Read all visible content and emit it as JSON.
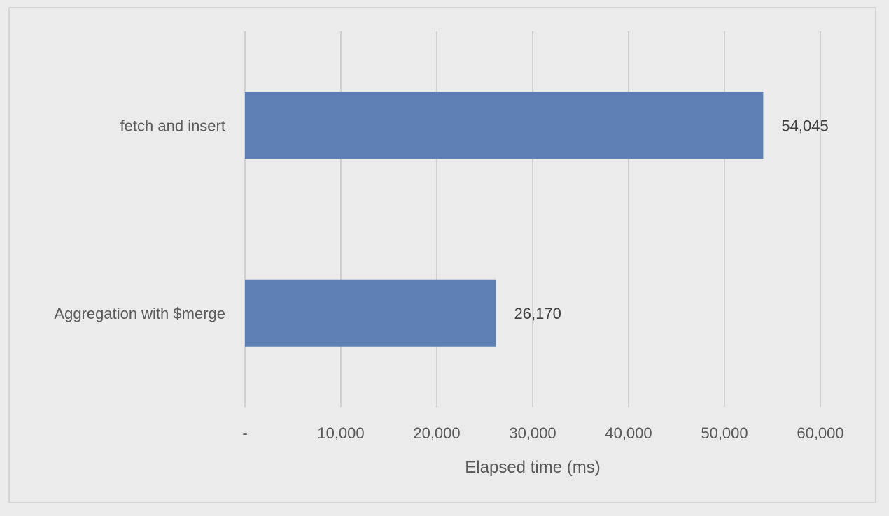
{
  "chart_data": {
    "type": "bar",
    "orientation": "horizontal",
    "categories": [
      "fetch and insert",
      "Aggregation with $merge"
    ],
    "values": [
      54045,
      26170
    ],
    "data_labels": [
      "54,045",
      "26,170"
    ],
    "title": "",
    "xlabel": "Elapsed time (ms)",
    "ylabel": "",
    "xlim": [
      0,
      60000
    ],
    "x_ticks": [
      0,
      10000,
      20000,
      30000,
      40000,
      50000,
      60000
    ],
    "x_tick_labels": [
      "-",
      "10,000",
      "20,000",
      "30,000",
      "40,000",
      "50,000",
      "60,000"
    ],
    "grid": "vertical",
    "legend": "none",
    "bar_color": "#5f80b5",
    "gridline_color": "#d0d0d0",
    "background_color": "#ebebeb"
  }
}
